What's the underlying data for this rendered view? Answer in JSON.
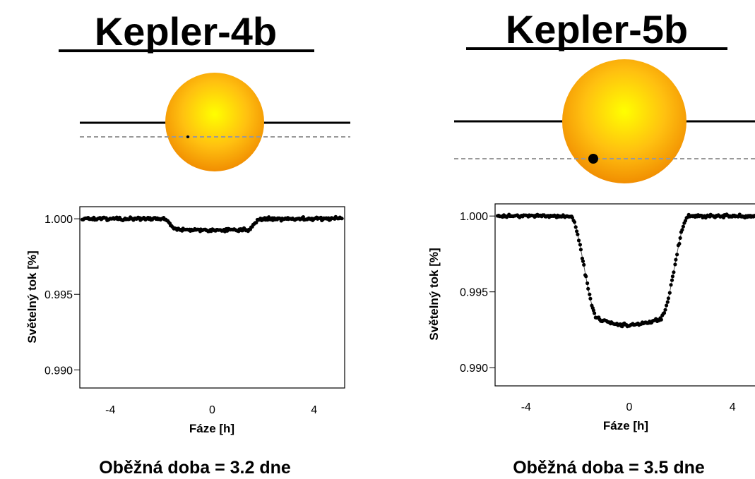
{
  "colors": {
    "star_core": "#ffff00",
    "star_mid": "#ffc010",
    "star_edge": "#f08a00",
    "points": "#000000",
    "model_line": "#555555",
    "dashed_path": "#999999"
  },
  "chart_data": [
    {
      "type": "scatter",
      "title": "Kepler-4b",
      "xlabel": "Fáze [h]",
      "ylabel": "Světelný tok [%]",
      "xlim": [
        -5.2,
        5.2
      ],
      "ylim": [
        0.9888,
        1.0008
      ],
      "xticks": [
        -4,
        0,
        4
      ],
      "xtick_labels": [
        "-4",
        "0",
        "4"
      ],
      "yticks": [
        1.0,
        0.995,
        0.99
      ],
      "ytick_labels": [
        "1.000",
        "0.995",
        "0.990"
      ],
      "transit_depth": 0.00075,
      "transit_t14_h": 3.8,
      "transit_ingress_h": 0.5,
      "period_label": "Oběžná doba = 3.2 dne"
    },
    {
      "type": "scatter",
      "title": "Kepler-5b",
      "xlabel": "Fáze [h]",
      "ylabel": "Světelný tok [%]",
      "xlim": [
        -5.2,
        5.2
      ],
      "ylim": [
        0.9888,
        1.0008
      ],
      "xticks": [
        -4,
        0,
        4
      ],
      "xtick_labels": [
        "-4",
        "0",
        "4"
      ],
      "yticks": [
        1.0,
        0.995,
        0.99
      ],
      "ytick_labels": [
        "1.000",
        "0.995",
        "0.990"
      ],
      "transit_depth": 0.0072,
      "transit_t14_h": 4.6,
      "transit_ingress_h": 1.1,
      "period_label": "Oběžná doba = 3.5 dne"
    }
  ]
}
